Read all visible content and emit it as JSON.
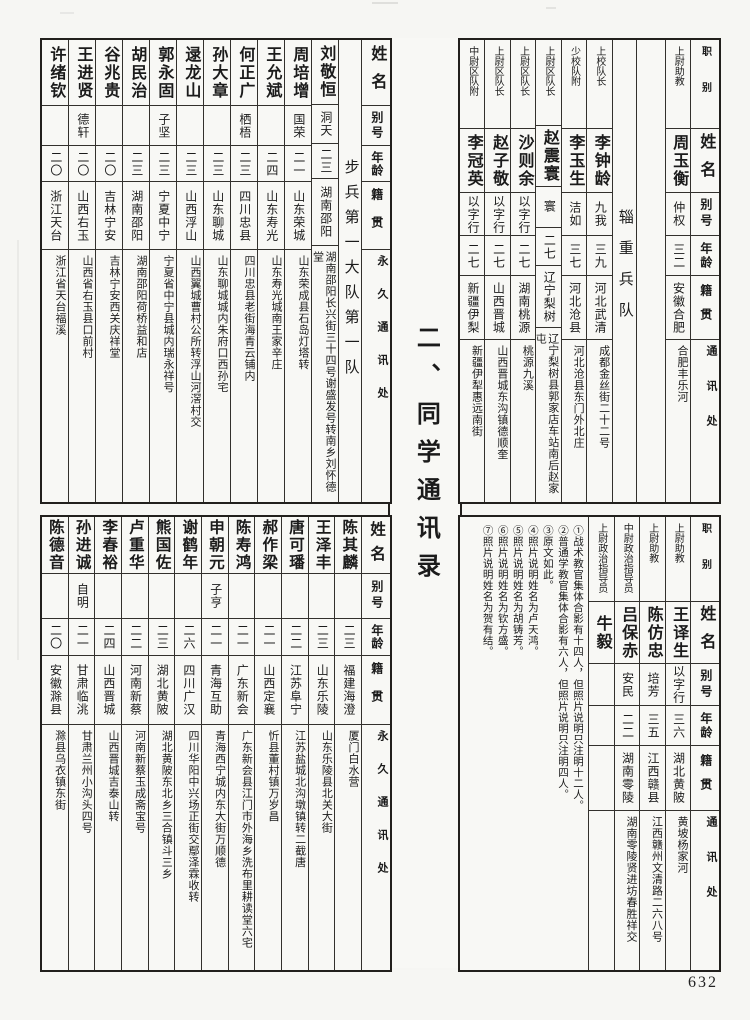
{
  "document": {
    "title": "二、同学通讯录",
    "page_number": "632"
  },
  "left_top": {
    "section_label": "步兵第一大队第一队",
    "headers": [
      "姓名",
      "别号",
      "年龄",
      "籍贯",
      "永久通讯处"
    ],
    "people": [
      {
        "name": "刘敬恒",
        "alias": "洞天",
        "age": "二三",
        "native": "湖南邵阳",
        "addr": "湖南邵阳长兴街三十四号谢盛发号转南乡刘怀德堂"
      },
      {
        "name": "周培增",
        "alias": "国荣",
        "age": "二一",
        "native": "山东荣城",
        "addr": "山东荣成县石岛灯塔转"
      },
      {
        "name": "王允斌",
        "alias": "",
        "age": "二四",
        "native": "山东寿光",
        "addr": "山东寿光城南王家辛庄"
      },
      {
        "name": "何正广",
        "alias": "栖梧",
        "age": "二三",
        "native": "四川忠县",
        "addr": "四川忠县老街海青云铺内"
      },
      {
        "name": "孙大章",
        "alias": "",
        "age": "二三",
        "native": "山东聊城",
        "addr": "山东聊城城内朱府口西孙宅"
      },
      {
        "name": "逯龙山",
        "alias": "",
        "age": "二三",
        "native": "山西浮山",
        "addr": "山西翼城曹村公所转浮山河滘村交"
      },
      {
        "name": "郭永固",
        "alias": "子坚",
        "age": "二三",
        "native": "宁夏中宁",
        "addr": "宁夏省中宁县城内瑞永祥号"
      },
      {
        "name": "胡民治",
        "alias": "",
        "age": "二三",
        "native": "湖南邵阳",
        "addr": "湖南邵阳荷桥益和店"
      },
      {
        "name": "谷兆贵",
        "alias": "",
        "age": "二〇",
        "native": "吉林宁安",
        "addr": "吉林宁安西关庆祥堂"
      },
      {
        "name": "王进贤",
        "alias": "德轩",
        "age": "二〇",
        "native": "山西右玉",
        "addr": "山西省右玉县口前村"
      },
      {
        "name": "许绪钦",
        "alias": "",
        "age": "二〇",
        "native": "浙江天台",
        "addr": "浙江省天台福溪"
      }
    ]
  },
  "left_bottom": {
    "headers": [
      "姓名",
      "别号",
      "年龄",
      "籍贯",
      "永久通讯处"
    ],
    "people": [
      {
        "name": "陈其麟",
        "alias": "",
        "age": "二三",
        "native": "福建海澄",
        "addr": "厦门白水营"
      },
      {
        "name": "王泽丰",
        "alias": "",
        "age": "二三",
        "native": "山东乐陵",
        "addr": "山东乐陵县北关大街"
      },
      {
        "name": "唐可璠",
        "alias": "",
        "age": "二二",
        "native": "江苏阜宁",
        "addr": "江苏盐城北沟墩镇转二截唐"
      },
      {
        "name": "郝作梁",
        "alias": "",
        "age": "二一",
        "native": "山西定襄",
        "addr": "忻县董村镇万岁昌"
      },
      {
        "name": "陈寿鸿",
        "alias": "",
        "age": "二一",
        "native": "广东新会",
        "addr": "广东新会县江门市外海乡洗布里耕读堂六宅"
      },
      {
        "name": "申朝元",
        "alias": "子亨",
        "age": "二一",
        "native": "青海互助",
        "addr": "青海西宁城内东大街万顺德"
      },
      {
        "name": "谢鹤年",
        "alias": "",
        "age": "二六",
        "native": "四川广汉",
        "addr": "四川华阳中兴场正街交鄢泽霖收转"
      },
      {
        "name": "熊国佐",
        "alias": "",
        "age": "二三",
        "native": "湖北黄陂",
        "addr": "湖北黄陂东北乡三合镇斗三乡"
      },
      {
        "name": "卢重华",
        "alias": "",
        "age": "二二",
        "native": "河南新蔡",
        "addr": "河南新蔡玉成斋宝号"
      },
      {
        "name": "李春裕",
        "alias": "",
        "age": "二四",
        "native": "山西晋城",
        "addr": "山西晋城吉泰山转"
      },
      {
        "name": "孙进诚",
        "alias": "自明",
        "age": "二一",
        "native": "甘肃临洮",
        "addr": "甘肃兰州小沟头四号"
      },
      {
        "name": "陈德音",
        "alias": "",
        "age": "二〇",
        "native": "安徽滁县",
        "addr": "滁县乌衣镇东街"
      }
    ]
  },
  "right_top": {
    "headers": [
      "职别",
      "姓名",
      "别号",
      "年龄",
      "籍贯",
      "通讯处"
    ],
    "pre_people": [
      {
        "rank": "上尉助教",
        "name": "周玉衡",
        "alias": "仲权",
        "age": "三二",
        "native": "安徽合肥",
        "addr": "合肥丰乐河"
      }
    ],
    "divider_label": "辎重兵队",
    "people": [
      {
        "rank": "上校队长",
        "name": "李钟龄",
        "alias": "九我",
        "age": "三九",
        "native": "河北武清",
        "addr": "成都金丝街二十二号"
      },
      {
        "rank": "少校队附",
        "name": "李玉生",
        "alias": "洁如",
        "age": "三七",
        "native": "河北沧县",
        "addr": "河北沧县东门外北庄"
      },
      {
        "rank": "上尉区队长",
        "name": "赵震寰",
        "alias": "寰",
        "age": "二七",
        "native": "辽宁梨树",
        "addr": "辽宁梨树县郭家店车站南后赵家屯"
      },
      {
        "rank": "上尉区队长",
        "name": "沙则余",
        "alias": "以字行",
        "age": "二七",
        "native": "湖南桃源",
        "addr": "桃源九溪"
      },
      {
        "rank": "上尉区队长",
        "name": "赵子敬",
        "alias": "以字行",
        "age": "二七",
        "native": "山西晋城",
        "addr": "山西晋城东沟镇德顺奎"
      },
      {
        "rank": "中尉区队附",
        "name": "李冠英",
        "alias": "以字行",
        "age": "二七",
        "native": "新疆伊梨",
        "addr": "新疆伊犁惠远南街"
      }
    ]
  },
  "right_bottom": {
    "headers": [
      "职别",
      "姓名",
      "别号",
      "年龄",
      "籍贯",
      "通讯处"
    ],
    "people": [
      {
        "rank": "上尉助教",
        "name": "王译生",
        "alias": "以字行",
        "age": "三六",
        "native": "湖北黄陂",
        "addr": "黄坡杨家河"
      },
      {
        "rank": "上尉助教",
        "name": "陈仿忠",
        "alias": "培芳",
        "age": "三五",
        "native": "江西赣县",
        "addr": "江西赣州文清路二六八号"
      },
      {
        "rank": "中尉政治指导员",
        "name": "吕保赤",
        "alias": "安民",
        "age": "二二",
        "native": "湖南零陵",
        "addr": "湖南零陵贤进坊春胜祥交"
      },
      {
        "rank": "上尉政治指导员",
        "name": "牛毅",
        "alias": "",
        "age": "",
        "native": "",
        "addr": ""
      }
    ],
    "footnotes": [
      "①战术教官集体合影有十四人，但照片说明只注明十二人。",
      "②普通学教官集体合影有六人，但照片说明只注明四人。",
      "③原文如此。",
      "④照片说明姓名为卢天鸿。",
      "⑤照片说明姓名为胡铸芳。",
      "⑥照片说明姓名为钦方盛。",
      "⑦照片说明姓名为贺有结。"
    ]
  }
}
